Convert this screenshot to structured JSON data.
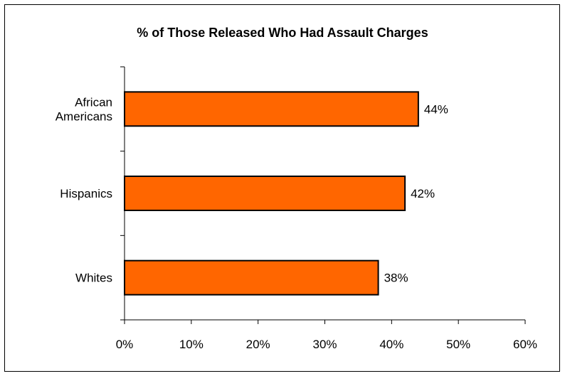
{
  "chart_data": {
    "type": "bar",
    "orientation": "horizontal",
    "title": "% of Those Released Who Had Assault Charges",
    "categories": [
      [
        "African",
        "Americans"
      ],
      [
        "Hispanics"
      ],
      [
        "Whites"
      ]
    ],
    "values": [
      44,
      42,
      38
    ],
    "data_labels": [
      "44%",
      "42%",
      "38%"
    ],
    "xlim": [
      0,
      60
    ],
    "x_ticks": [
      0,
      10,
      20,
      30,
      40,
      50,
      60
    ],
    "x_tick_labels": [
      "0%",
      "10%",
      "20%",
      "30%",
      "40%",
      "50%",
      "60%"
    ],
    "bar_color": "#ff6600",
    "grid": false,
    "legend": "none"
  }
}
